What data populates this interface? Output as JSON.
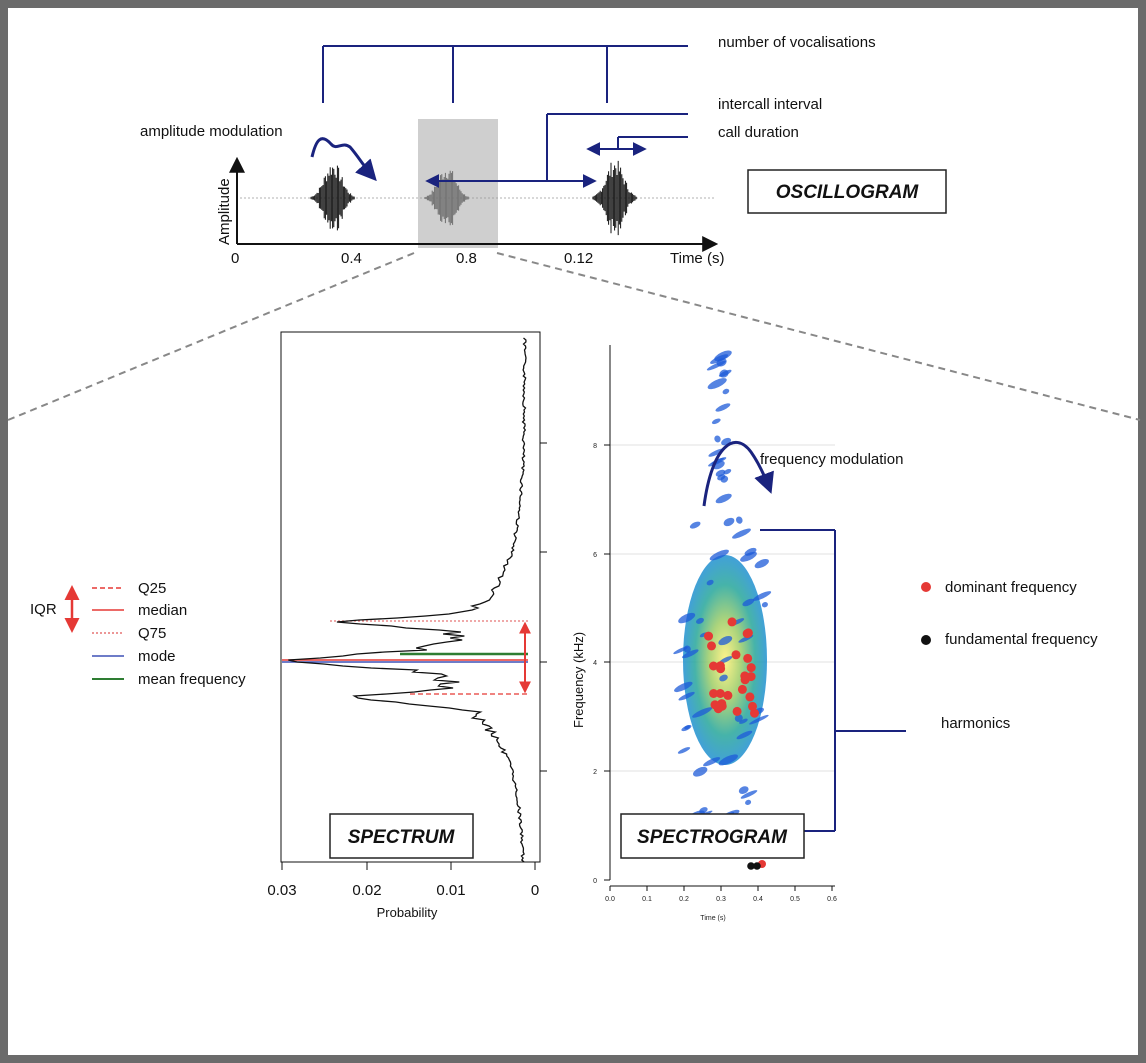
{
  "annotations": {
    "number_of_vocalisations": "number of vocalisations",
    "intercall_interval": "intercall interval",
    "call_duration": "call duration",
    "amplitude_modulation": "amplitude modulation",
    "frequency_modulation": "frequency modulation",
    "harmonics": "harmonics"
  },
  "titles": {
    "oscillogram": "OSCILLOGRAM",
    "spectrum": "SPECTRUM",
    "spectrogram": "SPECTROGRAM"
  },
  "oscillogram": {
    "ylabel": "Amplitude",
    "xlabel": "Time (s)",
    "ticks": [
      "0",
      "0.4",
      "0.8",
      "0.12"
    ]
  },
  "spectrum": {
    "xlabel": "Probability",
    "ticks": [
      "0.03",
      "0.02",
      "0.01",
      "0"
    ],
    "legend": [
      {
        "label": "Q25",
        "color": "#e53935",
        "style": "dashed"
      },
      {
        "label": "median",
        "color": "#e53935",
        "style": "solid"
      },
      {
        "label": "Q75",
        "color": "#e57373",
        "style": "dotted"
      },
      {
        "label": "mode",
        "color": "#3f51b5",
        "style": "solid"
      },
      {
        "label": "mean frequency",
        "color": "#2e7d32",
        "style": "solid"
      }
    ],
    "iqr_label": "IQR"
  },
  "spectrogram": {
    "ylabel": "Frequency (kHz)",
    "xlabel": "Time (s)",
    "y_ticks": [
      "0",
      "2",
      "4",
      "6",
      "8"
    ],
    "x_ticks": [
      "0.0",
      "0.1",
      "0.2",
      "0.3",
      "0.4",
      "0.5",
      "0.6"
    ],
    "x_tick_last": "0.6",
    "legend": [
      {
        "label": "dominant frequency",
        "color": "#e53935"
      },
      {
        "label": "fundamental frequency",
        "color": "#111111"
      }
    ]
  },
  "colors": {
    "annotation_blue": "#1a237e",
    "red": "#e53935",
    "green": "#2e7d32",
    "frame": "#6b6b6b"
  }
}
